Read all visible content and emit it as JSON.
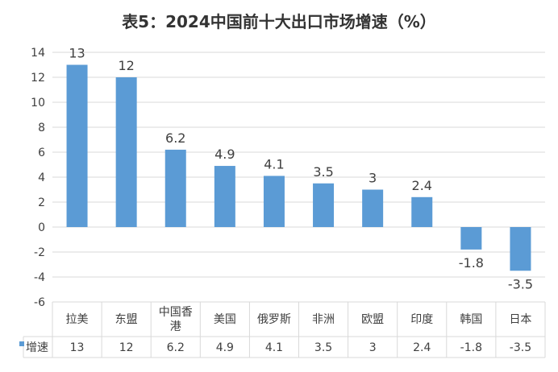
{
  "chart_data": {
    "type": "bar",
    "title": "表5：2024中国前十大出口市场增速（%）",
    "categories": [
      "拉美",
      "东盟",
      "中国香港",
      "美国",
      "俄罗斯",
      "非洲",
      "欧盟",
      "印度",
      "韩国",
      "日本"
    ],
    "category_lines": [
      [
        "拉美"
      ],
      [
        "东盟"
      ],
      [
        "中国香",
        "港"
      ],
      [
        "美国"
      ],
      [
        "俄罗斯"
      ],
      [
        "非洲"
      ],
      [
        "欧盟"
      ],
      [
        "印度"
      ],
      [
        "韩国"
      ],
      [
        "日本"
      ]
    ],
    "series": [
      {
        "name": "增速",
        "values": [
          13,
          12,
          6.2,
          4.9,
          4.1,
          3.5,
          3,
          2.4,
          -1.8,
          -3.5
        ]
      }
    ],
    "value_labels": [
      "13",
      "12",
      "6.2",
      "4.9",
      "4.1",
      "3.5",
      "3",
      "2.4",
      "-1.8",
      "-3.5"
    ],
    "ylim": [
      -6,
      14
    ],
    "yticks": [
      14,
      12,
      10,
      8,
      6,
      4,
      2,
      0,
      -2,
      -4,
      -6
    ],
    "grid": true,
    "legend": "data-table-below",
    "bar_color": "#5B9BD5"
  }
}
